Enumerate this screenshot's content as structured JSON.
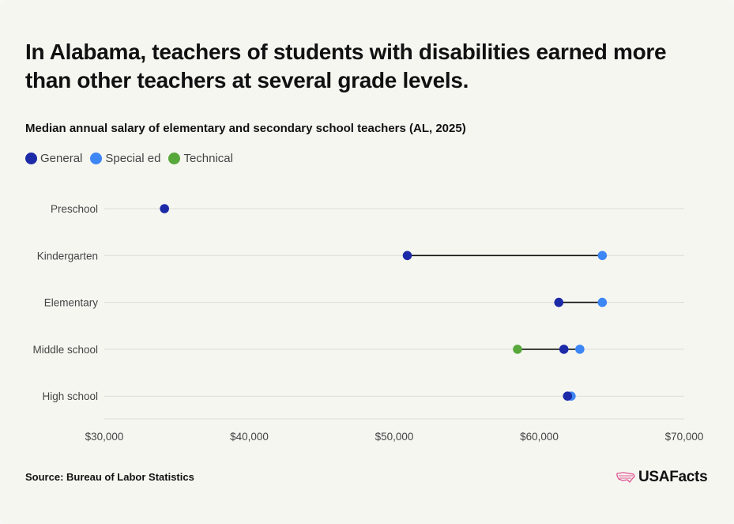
{
  "header": {
    "title": "In Alabama, teachers of students with disabilities earned more than other teachers at several grade levels.",
    "subtitle": "Median annual salary of elementary and secondary school teachers (AL, 2025)"
  },
  "footer": {
    "source": "Source: Bureau of Labor Statistics",
    "logo_text": "USAFacts"
  },
  "colors": {
    "general": "#1c2aa8",
    "special_ed": "#3d86f5",
    "technical": "#57a83a",
    "connector": "#111111",
    "grid": "#dcdcd6",
    "logo_accent": "#e0528f"
  },
  "chart_data": {
    "type": "dot-range",
    "title": "Median annual salary of elementary and secondary school teachers (AL, 2025)",
    "categories": [
      "Preschool",
      "Kindergarten",
      "Elementary",
      "Middle school",
      "High school"
    ],
    "series": [
      {
        "name": "General",
        "color": "#1c2aa8",
        "values": [
          34150,
          50900,
          61350,
          61700,
          61950
        ]
      },
      {
        "name": "Special ed",
        "color": "#3d86f5",
        "values": [
          null,
          64350,
          64350,
          62800,
          62200
        ]
      },
      {
        "name": "Technical",
        "color": "#57a83a",
        "values": [
          null,
          null,
          null,
          58500,
          null
        ]
      }
    ],
    "xlim": [
      30000,
      70000
    ],
    "xticks": [
      30000,
      40000,
      50000,
      60000,
      70000
    ],
    "xtick_labels": [
      "$30,000",
      "$40,000",
      "$50,000",
      "$60,000",
      "$70,000"
    ],
    "grid": true,
    "legend": "top-left"
  }
}
